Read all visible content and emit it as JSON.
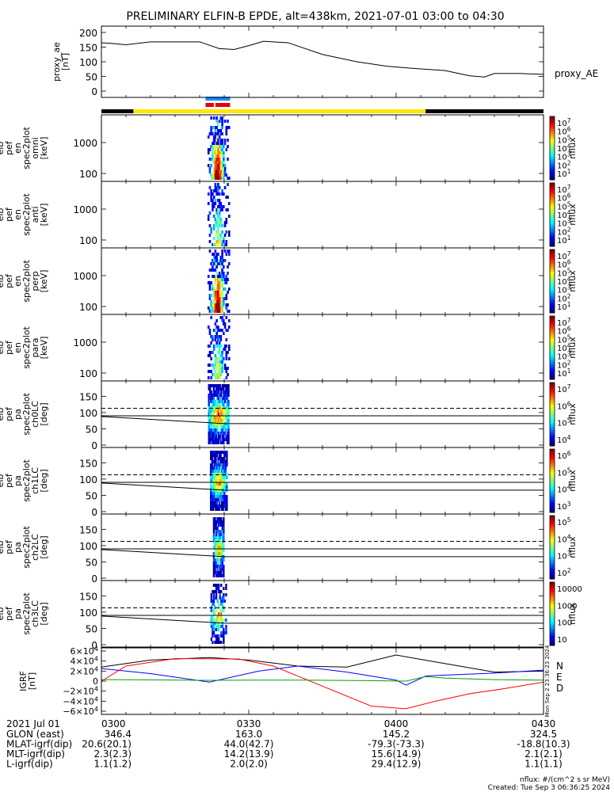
{
  "title": "PRELIMINARY ELFIN-B EPDE, alt=438km, 2021-07-01 03:00 to 04:30",
  "colors": {
    "bar_black": "#000000",
    "bar_yellow": "#ffe600",
    "ind_blue": "#1a8cff",
    "ind_red": "#e60000",
    "line_black": "#000000",
    "line_blue": "#0000ff",
    "line_red": "#ff0000",
    "line_green": "#00a000"
  },
  "chart_data": [
    {
      "type": "line",
      "id": "proxy_ae",
      "ylabel": "proxy_ae [nT]",
      "legend": "proxy_AE",
      "ylim": [
        0,
        200
      ],
      "yticks": [
        "0",
        "50",
        "100",
        "150",
        "200"
      ],
      "series": [
        {
          "name": "proxy_AE",
          "x": [
            0,
            2,
            5,
            10,
            20,
            24,
            27,
            30,
            33,
            38,
            45,
            52,
            58,
            63,
            70,
            75,
            78,
            80,
            85,
            90
          ],
          "y": [
            165,
            163,
            158,
            168,
            168,
            145,
            142,
            155,
            170,
            165,
            125,
            100,
            85,
            78,
            70,
            52,
            48,
            60,
            60,
            57
          ]
        }
      ]
    },
    {
      "type": "heatmap",
      "id": "en_spec",
      "panels": [
        {
          "ylabel": "elb pef en spec2plot omni [keV]",
          "colorbar": "nflux",
          "cticks": [
            "10^7",
            "10^6",
            "10^5",
            "10^4",
            "10^3",
            "10^2",
            "10^1"
          ]
        },
        {
          "ylabel": "elb pef en spec2plot anti [keV]",
          "colorbar": "nflux",
          "cticks": [
            "10^7",
            "10^6",
            "10^5",
            "10^4",
            "10^3",
            "10^2",
            "10^1"
          ]
        },
        {
          "ylabel": "elb pef en spec2plot perp [keV]",
          "colorbar": "nflux",
          "cticks": [
            "10^7",
            "10^6",
            "10^5",
            "10^4",
            "10^3",
            "10^2",
            "10^1"
          ]
        },
        {
          "ylabel": "elb pef en spec2plot para [keV]",
          "colorbar": "nflux",
          "cticks": [
            "10^7",
            "10^6",
            "10^5",
            "10^4",
            "10^3",
            "10^2",
            "10^1"
          ]
        }
      ],
      "yticks": [
        "100",
        "1000"
      ]
    },
    {
      "type": "heatmap",
      "id": "pa_spec",
      "panels": [
        {
          "ylabel": "elb pef pa spec2plot ch0LC [deg]",
          "colorbar": "nflux",
          "cticks": [
            "10^7",
            "10^6",
            "10^5",
            "10^4"
          ]
        },
        {
          "ylabel": "elb pef pa spec2plot ch1LC [deg]",
          "colorbar": "nflux",
          "cticks": [
            "10^6",
            "10^5",
            "10^4",
            "10^3"
          ]
        },
        {
          "ylabel": "elb pef pa spec2plot ch2LC [deg]",
          "colorbar": "nflux",
          "cticks": [
            "10^5",
            "10^4",
            "10^3",
            "10^2"
          ]
        },
        {
          "ylabel": "elb pef pa spec2plot ch3LC [deg]",
          "colorbar": "nflux",
          "cticks": [
            "10000",
            "1000",
            "100",
            "10"
          ]
        }
      ],
      "yticks": [
        "0",
        "50",
        "100",
        "150"
      ]
    },
    {
      "type": "line",
      "id": "igrf",
      "ylabel": "IGRF [nT]",
      "ylim": [
        -60000,
        60000
      ],
      "yticks": [
        "6×10^4",
        "4×10^4",
        "2×10^4",
        "0",
        "−2×10^4",
        "−4×10^4",
        "−6×10^4"
      ],
      "labels": [
        "N",
        "E",
        "D"
      ],
      "series": [
        {
          "x": [
            0,
            10,
            22,
            30,
            40,
            50,
            60,
            70,
            80,
            90
          ],
          "y": [
            28000,
            42000,
            47000,
            42000,
            30000,
            28000,
            52000,
            35000,
            18000,
            20000
          ]
        },
        {
          "x": [
            0,
            10,
            22,
            32,
            40,
            50,
            60,
            62,
            66,
            70,
            80,
            90
          ],
          "y": [
            25000,
            15000,
            -2000,
            20000,
            30000,
            18000,
            2000,
            -8000,
            10000,
            12000,
            16000,
            22000
          ]
        },
        {
          "x": [
            0,
            5,
            15,
            28,
            35,
            45,
            55,
            62,
            68,
            75,
            82,
            90
          ],
          "y": [
            0,
            30000,
            45000,
            44000,
            30000,
            -10000,
            -50000,
            -55000,
            -40000,
            -25000,
            -15000,
            -2000
          ]
        },
        {
          "x": [
            0,
            10,
            22,
            30,
            40,
            55,
            62,
            66,
            70,
            80,
            90
          ],
          "y": [
            3000,
            2500,
            1500,
            2000,
            2000,
            1000,
            0,
            9000,
            6000,
            3000,
            2000
          ]
        }
      ]
    }
  ],
  "footer": {
    "date": "2021 Jul 01",
    "rows": [
      {
        "label": "GLON (east)",
        "values": [
          "346.4",
          "163.0",
          "145.2",
          "324.5"
        ]
      },
      {
        "label": "MLAT-igrf(dip)",
        "values": [
          "20.6(20.1)",
          "44.0(42.7)",
          "-79.3(-73.3)",
          "-18.8(10.3)"
        ]
      },
      {
        "label": "MLT-igrf(dip)",
        "values": [
          "2.3(2.3)",
          "14.2(13.9)",
          "15.6(14.9)",
          "2.1(2.1)"
        ]
      },
      {
        "label": "L-igrf(dip)",
        "values": [
          "1.1(1.2)",
          "2.0(2.0)",
          "29.4(12.9)",
          "1.1(1.1)"
        ]
      }
    ],
    "time_labels": [
      "0300",
      "0330",
      "0400",
      "0430"
    ],
    "units_note": "nflux: #/(cm^2 s sr MeV)",
    "created": "Created: Tue Sep  3 06:36:25 2024",
    "side_note": "Mon Sep 2 23:36:23 2024"
  }
}
